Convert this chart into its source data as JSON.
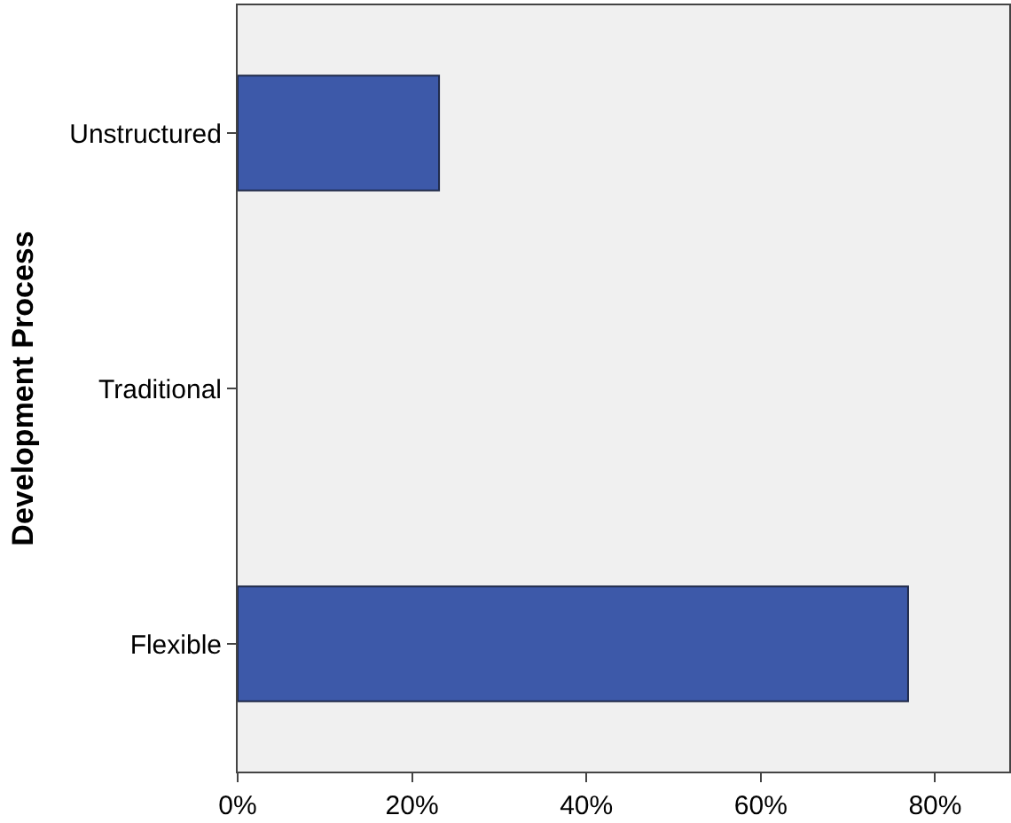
{
  "chart_data": {
    "type": "bar",
    "orientation": "horizontal",
    "ylabel": "Development Process",
    "categories": [
      "Unstructured",
      "Traditional",
      "Flexible"
    ],
    "values": [
      23.1,
      null,
      76.9
    ],
    "color": "#3d59a9",
    "xlim": [
      0,
      88.5
    ],
    "xticks": [
      {
        "value": 0,
        "label": "0%"
      },
      {
        "value": 20,
        "label": "20%"
      },
      {
        "value": 40,
        "label": "40%"
      },
      {
        "value": 60,
        "label": "60%"
      },
      {
        "value": 80,
        "label": "80%"
      }
    ],
    "grid": false
  }
}
